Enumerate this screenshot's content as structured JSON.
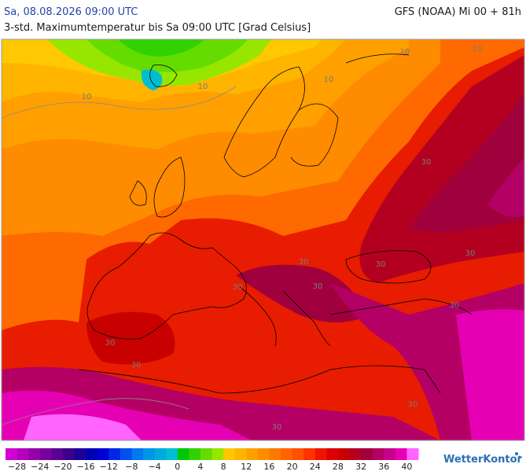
{
  "header": {
    "valid_time": "Sa, 08.08.2026 09:00 UTC",
    "model_run": "GFS (NOAA) Mi 00 + 81h",
    "subtitle": "3-std. Maximumtemperatur bis Sa 09:00 UTC [Grad Celsius]"
  },
  "contour_labels": [
    "10",
    "10",
    "10",
    "10",
    "10",
    "30",
    "30",
    "30",
    "30",
    "30",
    "30",
    "30",
    "30",
    "30",
    "30",
    "30"
  ],
  "colorbar": {
    "range": [
      -30,
      42
    ],
    "colors": [
      "#d200d2",
      "#b400be",
      "#9600aa",
      "#7800a0",
      "#5a0096",
      "#3c008c",
      "#1e0096",
      "#0000b4",
      "#0000d2",
      "#0028e6",
      "#0050f0",
      "#0078f0",
      "#0096e6",
      "#00aadc",
      "#00bed2",
      "#00c800",
      "#32d200",
      "#64dc00",
      "#96e600",
      "#ffc800",
      "#ffb400",
      "#ffa000",
      "#ff8c00",
      "#ff7800",
      "#ff6400",
      "#ff5000",
      "#ff3200",
      "#f01400",
      "#dc0000",
      "#c80000",
      "#b4001e",
      "#a0003c",
      "#b40064",
      "#c8008c",
      "#e600b4",
      "#ff64ff"
    ],
    "ticks": [
      {
        "value": -28,
        "label": "−28"
      },
      {
        "value": -24,
        "label": "−24"
      },
      {
        "value": -20,
        "label": "−20"
      },
      {
        "value": -16,
        "label": "−16"
      },
      {
        "value": -12,
        "label": "−12"
      },
      {
        "value": -8,
        "label": "−8"
      },
      {
        "value": -4,
        "label": "−4"
      },
      0,
      4,
      8,
      12,
      16,
      20,
      24,
      28,
      32,
      36,
      40
    ]
  },
  "logo": "WetterKontor"
}
